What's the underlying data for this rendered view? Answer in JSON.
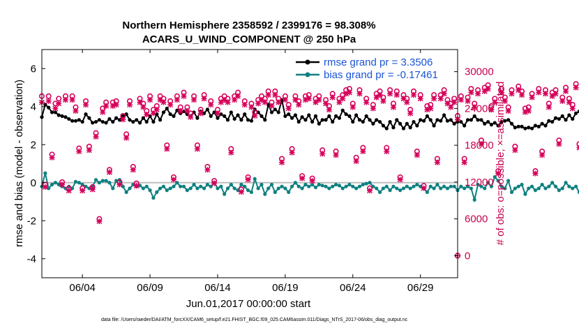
{
  "chart_data": {
    "type": "line",
    "title_line1": "Northern Hemisphere 2358592 / 2399176 = 98.308%",
    "title_line2": "ACARS_U_WIND_COMPONENT @ 250 hPa",
    "xlabel": "Jun.01,2017 00:00:00 start",
    "ylabel": "rmse and bias (model - observation)",
    "y2label": "# of obs: o=possible; ×=assimilated",
    "footnote": "data file: /Users/raeder/DAI/ATM_forcXX/CAM6_setup/f.e21.FHIST_BGC.f09_025.CAM6assim.011/Diags_NTrS_2017-06/obs_diag_output.nc",
    "xlim": [
      1,
      31.75
    ],
    "ylim": [
      -5,
      7
    ],
    "y2lim": [
      -3600,
      33600
    ],
    "x_ticks": [
      4,
      9,
      14,
      19,
      24,
      29
    ],
    "x_tick_labels": [
      "06/04",
      "06/09",
      "06/14",
      "06/19",
      "06/24",
      "06/29"
    ],
    "y_ticks": [
      -4,
      -2,
      0,
      2,
      4,
      6
    ],
    "y_tick_labels": [
      "-4",
      "-2",
      "0",
      "2",
      "4",
      "6"
    ],
    "y2_ticks": [
      0,
      6000,
      12000,
      18000,
      24000,
      30000
    ],
    "y2_tick_labels": [
      "0",
      "6000",
      "12000",
      "18000",
      "24000",
      "30000"
    ],
    "legend": [
      {
        "label": "rmse grand pr = 3.3506",
        "color": "#000000"
      },
      {
        "label": "bias grand pr = -0.17461",
        "color": "#0f8080"
      }
    ],
    "colors": {
      "rmse": "#000000",
      "bias": "#0f8080",
      "obs": "#d6005a",
      "zero_line": "#bdbdbd"
    },
    "x_start": 1.0,
    "x_step": 0.25,
    "series": [
      {
        "name": "rmse",
        "values": [
          3.45,
          4.1,
          3.95,
          3.7,
          3.7,
          3.55,
          3.5,
          3.45,
          3.35,
          3.25,
          3.25,
          3.3,
          3.2,
          3.6,
          3.4,
          3.15,
          3.2,
          3.3,
          3.2,
          3.15,
          3.35,
          3.2,
          3.4,
          3.3,
          3.5,
          3.6,
          3.3,
          3.2,
          3.3,
          3.15,
          3.4,
          3.2,
          3.5,
          3.2,
          3.6,
          3.3,
          3.7,
          3.9,
          3.6,
          3.5,
          3.8,
          3.65,
          3.75,
          3.6,
          3.5,
          3.7,
          3.4,
          3.75,
          3.65,
          3.85,
          3.5,
          3.7,
          3.4,
          3.6,
          3.5,
          3.3,
          3.7,
          3.35,
          3.55,
          3.3,
          3.6,
          3.3,
          3.25,
          3.85,
          3.7,
          3.5,
          3.3,
          4.1,
          3.7,
          3.85,
          3.7,
          4.35,
          3.5,
          3.6,
          3.4,
          3.55,
          3.2,
          3.45,
          3.3,
          3.55,
          3.2,
          3.5,
          3.1,
          3.3,
          3.3,
          3.5,
          3.2,
          3.5,
          3.4,
          3.8,
          3.6,
          3.5,
          3.2,
          3.55,
          3.3,
          3.2,
          3.5,
          3.3,
          3.1,
          3.3,
          3.2,
          3.0,
          2.85,
          3.2,
          2.9,
          3.3,
          3.1,
          2.85,
          3.1,
          2.9,
          3.2,
          3.0,
          3.3,
          3.25,
          3.5,
          3.3,
          3.0,
          3.3,
          3.25,
          3.55,
          3.25,
          3.3,
          3.1,
          3.2,
          3.2,
          3.0,
          3.3,
          3.3,
          3.5,
          3.3,
          3.3,
          3.1,
          3.2,
          3.05,
          3.15,
          3.0,
          3.2,
          3.25,
          3.3,
          3.1,
          2.9,
          2.95,
          2.95,
          2.85,
          2.9,
          2.85,
          3.0,
          2.95,
          3.1,
          3.0,
          3.25,
          3.2,
          3.4,
          3.35,
          3.5,
          3.3,
          3.55,
          3.35,
          3.65,
          3.75,
          3.6,
          3.8,
          3.7,
          3.9,
          4.0,
          4.1,
          3.3,
          3.7,
          3.5,
          3.55,
          3.4,
          3.6,
          3.2,
          3.3
        ]
      },
      {
        "name": "bias",
        "values": [
          -0.2,
          0.5,
          -0.3,
          -0.1,
          0.0,
          -0.1,
          -0.2,
          -0.3,
          -0.2,
          -0.3,
          0.05,
          0.0,
          -0.1,
          -0.2,
          -0.3,
          -0.2,
          0.15,
          0.0,
          0.1,
          0.1,
          0.0,
          -0.3,
          0.1,
          0.15,
          -0.2,
          -0.5,
          -0.3,
          -0.1,
          -0.2,
          -0.15,
          -0.3,
          -0.2,
          -0.4,
          -0.8,
          -0.5,
          -0.3,
          -0.2,
          -0.4,
          -0.3,
          -0.2,
          0.0,
          -0.2,
          -0.2,
          -0.4,
          -0.3,
          -0.1,
          -0.3,
          -0.2,
          -0.3,
          -0.1,
          -0.2,
          0.0,
          -0.3,
          -0.2,
          -0.6,
          -0.3,
          -0.1,
          -0.3,
          -0.4,
          -0.1,
          -0.2,
          -0.4,
          -0.5,
          0.2,
          -0.3,
          -0.1,
          -0.6,
          -0.3,
          -0.1,
          -0.5,
          -0.3,
          -0.2,
          -0.3,
          -0.5,
          -0.2,
          0.0,
          -0.2,
          -0.3,
          -0.1,
          -0.2,
          -0.1,
          -0.25,
          -0.1,
          -0.15,
          -0.2,
          -0.3,
          -0.2,
          -0.1,
          -0.15,
          -0.3,
          -0.2,
          -0.1,
          -0.2,
          -0.3,
          -0.2,
          -0.1,
          -0.05,
          0.0,
          -0.2,
          -0.3,
          -0.5,
          -0.3,
          -0.2,
          -0.4,
          -0.2,
          -0.3,
          -0.4,
          -0.3,
          -0.2,
          -0.3,
          -0.2,
          -0.1,
          -0.2,
          -0.3,
          -0.5,
          -0.2,
          -0.3,
          -0.1,
          -0.3,
          -0.2,
          -0.3,
          -0.2,
          -0.2,
          -0.4,
          -0.2,
          -0.3,
          -0.2,
          -0.3,
          -0.9,
          -0.1,
          -0.2,
          -0.3,
          0.0,
          -0.2,
          0.3,
          0.1,
          -0.2,
          -0.3,
          0.1,
          -0.5,
          -0.3,
          -0.2,
          -0.1,
          -0.6,
          -0.3,
          -0.2,
          -0.4,
          -0.3,
          -0.1,
          -0.3,
          -0.2,
          0.0,
          -0.2,
          -0.4,
          -0.3,
          0.0,
          -0.2,
          -0.3,
          -0.2,
          -0.5,
          -0.3,
          -0.2,
          0.0,
          -0.2,
          -0.1,
          -0.2,
          -0.1,
          0.0,
          -0.2,
          -0.1,
          -0.3,
          0.4,
          -0.2,
          -0.1
        ]
      },
      {
        "name": "obs possible (o)",
        "values": [
          26000,
          11600,
          26000,
          16500,
          24800,
          25600,
          12000,
          26000,
          11000,
          26000,
          24200,
          17500,
          11000,
          25200,
          17800,
          11200,
          20000,
          6000,
          24000,
          25000,
          14000,
          25000,
          25200,
          12000,
          22800,
          19800,
          25200,
          14500,
          11800,
          25600,
          24800,
          23600,
          26000,
          23800,
          24400,
          26000,
          25600,
          18000,
          25200,
          12800,
          26000,
          24200,
          26600,
          24200,
          23200,
          26000,
          18000,
          23800,
          26200,
          14500,
          25200,
          12200,
          23800,
          25600,
          26000,
          25600,
          17400,
          26000,
          26600,
          10800,
          25200,
          12800,
          24800,
          23400,
          25400,
          26000,
          25600,
          26800,
          25000,
          26800,
          25600,
          15800,
          26000,
          24600,
          17400,
          26000,
          25200,
          13000,
          26000,
          26200,
          12600,
          25600,
          26000,
          17200,
          25400,
          24400,
          26400,
          17000,
          25600,
          26200,
          27000,
          27200,
          24800,
          16000,
          27000,
          17600,
          25600,
          11000,
          24600,
          26400,
          26800,
          25800,
          17600,
          27000,
          24800,
          26800,
          12800,
          26200,
          25600,
          23800,
          26800,
          17000,
          26200,
          11400,
          24400,
          24600,
          26200,
          15800,
          26200,
          27000,
          25400,
          24800,
          25600,
          22800,
          26000,
          15800,
          25800,
          27200,
          24800,
          27000,
          18800,
          27400,
          27800,
          24400,
          25600,
          13800,
          27200,
          25800,
          24200,
          27000,
          17800,
          27600,
          26800,
          24000,
          24200,
          26400,
          13800,
          27200,
          17000,
          27000,
          24800,
          26600,
          27000,
          18800,
          25800,
          27400,
          25600,
          24600,
          28000,
          18200,
          26600,
          23800,
          27000,
          14000,
          26400,
          18400,
          27600,
          26400,
          11600,
          25400,
          28400,
          12200,
          27000,
          25800,
          17600,
          27400
        ]
      },
      {
        "name": "obs assimilated (x)",
        "values": [
          25000,
          11200,
          25200,
          16000,
          24000,
          24800,
          11600,
          25400,
          10600,
          25400,
          23600,
          17000,
          10600,
          24600,
          17200,
          10800,
          19400,
          5600,
          23400,
          24400,
          13600,
          24400,
          24600,
          11600,
          22200,
          19200,
          24600,
          14000,
          11400,
          25000,
          24200,
          23000,
          25400,
          23200,
          23800,
          25400,
          25000,
          17400,
          24600,
          12400,
          25400,
          23600,
          26000,
          23600,
          22600,
          25400,
          17400,
          23200,
          25600,
          14000,
          24600,
          11800,
          23200,
          25000,
          25400,
          25000,
          16800,
          25400,
          26000,
          10400,
          24600,
          12400,
          24200,
          22800,
          24800,
          25400,
          25000,
          26200,
          24400,
          26200,
          25000,
          15200,
          25400,
          24000,
          16800,
          25400,
          24600,
          12600,
          25400,
          25600,
          12200,
          25000,
          25400,
          16600,
          24800,
          23800,
          25800,
          16400,
          25000,
          25600,
          26400,
          26600,
          24200,
          15400,
          26400,
          17000,
          25000,
          10600,
          24000,
          25800,
          26200,
          25200,
          17000,
          26400,
          24200,
          26200,
          12400,
          25600,
          25000,
          23200,
          26200,
          16400,
          25600,
          11000,
          23800,
          24000,
          25600,
          15200,
          25600,
          26400,
          24800,
          24200,
          25000,
          22200,
          25400,
          15200,
          25200,
          26600,
          24200,
          26400,
          18200,
          26800,
          27200,
          23800,
          25000,
          13400,
          26600,
          25200,
          23600,
          26400,
          17200,
          27000,
          26200,
          23400,
          23600,
          25800,
          13400,
          26600,
          16400,
          26400,
          24200,
          26000,
          26400,
          18200,
          25200,
          26800,
          25000,
          24000,
          27400,
          17600,
          26000,
          23200,
          26400,
          13600,
          25800,
          17800,
          27000,
          25800,
          11200,
          24800,
          27800,
          11800,
          26400,
          25200,
          17000,
          26800
        ]
      }
    ],
    "obs_end_marker": {
      "x": 31.75,
      "value": 0
    }
  }
}
